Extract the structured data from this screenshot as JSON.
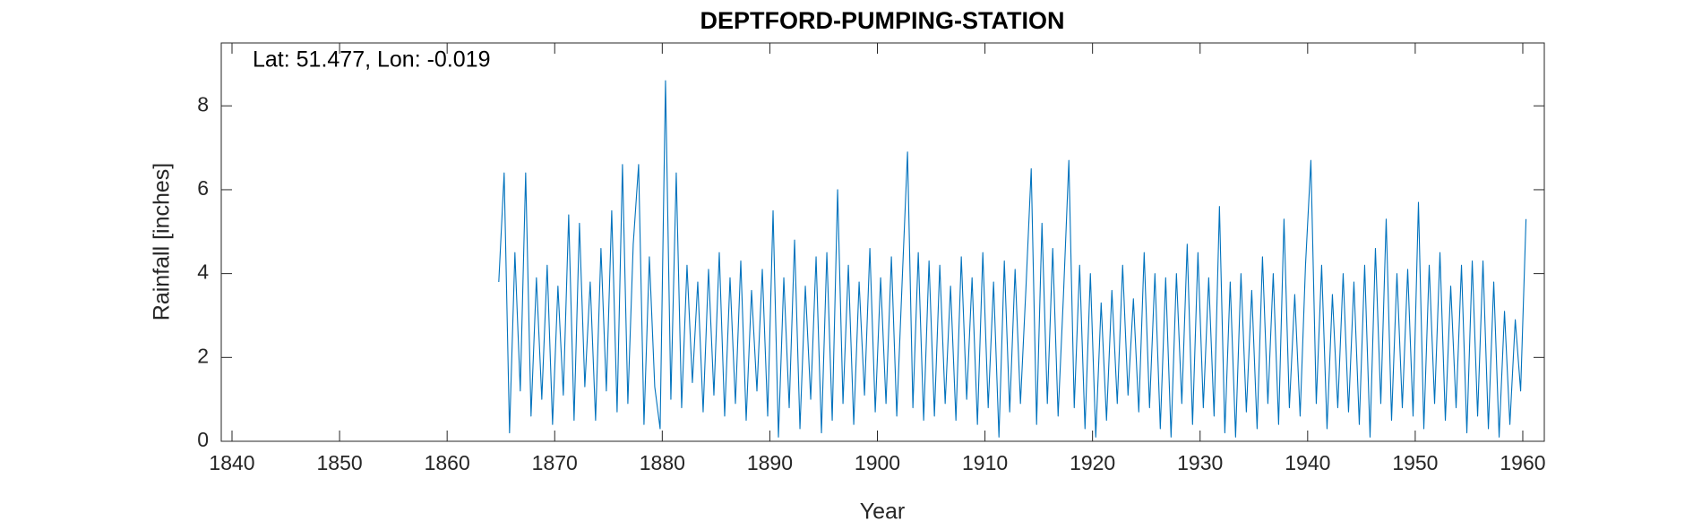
{
  "chart_data": {
    "type": "line",
    "title": "DEPTFORD-PUMPING-STATION",
    "annotation": "Lat: 51.477, Lon: -0.019",
    "xlabel": "Year",
    "ylabel": "Rainfall [inches]",
    "xlim": [
      1839,
      1962
    ],
    "xticks": [
      1840,
      1850,
      1860,
      1870,
      1880,
      1890,
      1900,
      1910,
      1920,
      1930,
      1940,
      1950,
      1960
    ],
    "ylim": [
      0,
      9.5
    ],
    "yticks": [
      0,
      2,
      4,
      6,
      8
    ],
    "x": [
      1864.8,
      1865.3,
      1865.8,
      1866.3,
      1866.8,
      1867.3,
      1867.8,
      1868.3,
      1868.8,
      1869.3,
      1869.8,
      1870.3,
      1870.8,
      1871.3,
      1871.8,
      1872.3,
      1872.8,
      1873.3,
      1873.8,
      1874.3,
      1874.8,
      1875.3,
      1875.8,
      1876.3,
      1876.8,
      1877.3,
      1877.8,
      1878.3,
      1878.8,
      1879.3,
      1879.8,
      1880.3,
      1880.8,
      1881.3,
      1881.8,
      1882.3,
      1882.8,
      1883.3,
      1883.8,
      1884.3,
      1884.8,
      1885.3,
      1885.8,
      1886.3,
      1886.8,
      1887.3,
      1887.8,
      1888.3,
      1888.8,
      1889.3,
      1889.8,
      1890.3,
      1890.8,
      1891.3,
      1891.8,
      1892.3,
      1892.8,
      1893.3,
      1893.8,
      1894.3,
      1894.8,
      1895.3,
      1895.8,
      1896.3,
      1896.8,
      1897.3,
      1897.8,
      1898.3,
      1898.8,
      1899.3,
      1899.8,
      1900.3,
      1900.8,
      1901.3,
      1901.8,
      1902.3,
      1902.8,
      1903.3,
      1903.8,
      1904.3,
      1904.8,
      1905.3,
      1905.8,
      1906.3,
      1906.8,
      1907.3,
      1907.8,
      1908.3,
      1908.8,
      1909.3,
      1909.8,
      1910.3,
      1910.8,
      1911.3,
      1911.8,
      1912.3,
      1912.8,
      1913.3,
      1913.8,
      1914.3,
      1914.8,
      1915.3,
      1915.8,
      1916.3,
      1916.8,
      1917.3,
      1917.8,
      1918.3,
      1918.8,
      1919.3,
      1919.8,
      1920.3,
      1920.8,
      1921.3,
      1921.8,
      1922.3,
      1922.8,
      1923.3,
      1923.8,
      1924.3,
      1924.8,
      1925.3,
      1925.8,
      1926.3,
      1926.8,
      1927.3,
      1927.8,
      1928.3,
      1928.8,
      1929.3,
      1929.8,
      1930.3,
      1930.8,
      1931.3,
      1931.8,
      1932.3,
      1932.8,
      1933.3,
      1933.8,
      1934.3,
      1934.8,
      1935.3,
      1935.8,
      1936.3,
      1936.8,
      1937.3,
      1937.8,
      1938.3,
      1938.8,
      1939.3,
      1939.8,
      1940.3,
      1940.8,
      1941.3,
      1941.8,
      1942.3,
      1942.8,
      1943.3,
      1943.8,
      1944.3,
      1944.8,
      1945.3,
      1945.8,
      1946.3,
      1946.8,
      1947.3,
      1947.8,
      1948.3,
      1948.8,
      1949.3,
      1949.8,
      1950.3,
      1950.8,
      1951.3,
      1951.8,
      1952.3,
      1952.8,
      1953.3,
      1953.8,
      1954.3,
      1954.8,
      1955.3,
      1955.8,
      1956.3,
      1956.8,
      1957.3,
      1957.8,
      1958.3,
      1958.8,
      1959.3,
      1959.8,
      1960.3
    ],
    "series": [
      {
        "color": "#0072bd",
        "values": [
          3.8,
          6.4,
          0.2,
          4.5,
          1.2,
          6.4,
          0.6,
          3.9,
          1.0,
          4.2,
          0.4,
          3.7,
          1.1,
          5.4,
          0.5,
          5.2,
          1.3,
          3.8,
          0.5,
          4.6,
          1.2,
          5.5,
          0.7,
          6.6,
          0.9,
          4.7,
          6.6,
          0.4,
          4.4,
          1.3,
          0.3,
          8.6,
          1.0,
          6.4,
          0.8,
          4.2,
          1.4,
          3.8,
          0.7,
          4.1,
          1.1,
          4.5,
          0.6,
          3.9,
          0.9,
          4.3,
          0.5,
          3.6,
          1.2,
          4.1,
          0.6,
          5.5,
          0.1,
          3.9,
          0.8,
          4.8,
          0.3,
          3.7,
          1.0,
          4.4,
          0.2,
          4.5,
          0.5,
          6.0,
          0.9,
          4.2,
          0.4,
          3.8,
          1.1,
          4.6,
          0.7,
          3.9,
          0.9,
          4.4,
          0.6,
          3.8,
          6.9,
          0.8,
          4.5,
          0.5,
          4.3,
          0.6,
          4.2,
          0.9,
          3.7,
          0.5,
          4.4,
          1.0,
          3.9,
          0.4,
          4.5,
          0.8,
          3.8,
          0.1,
          4.3,
          0.7,
          4.1,
          0.9,
          3.6,
          6.5,
          0.4,
          5.2,
          0.9,
          4.6,
          0.6,
          3.5,
          6.7,
          0.8,
          4.2,
          0.3,
          4.0,
          0.1,
          3.3,
          0.5,
          3.6,
          0.9,
          4.2,
          1.1,
          3.4,
          0.7,
          4.5,
          0.8,
          4.0,
          0.3,
          3.9,
          0.1,
          4.0,
          0.9,
          4.7,
          0.4,
          4.5,
          0.8,
          3.9,
          0.6,
          5.6,
          0.2,
          3.8,
          0.1,
          4.0,
          0.7,
          3.6,
          0.3,
          4.4,
          0.9,
          4.0,
          0.4,
          5.3,
          0.8,
          3.5,
          0.6,
          4.2,
          6.7,
          0.9,
          4.2,
          0.3,
          3.5,
          0.8,
          4.0,
          0.7,
          3.8,
          0.4,
          4.2,
          0.1,
          4.6,
          0.9,
          5.3,
          0.5,
          4.0,
          0.8,
          4.1,
          0.6,
          5.7,
          0.3,
          4.2,
          0.9,
          4.5,
          0.5,
          3.7,
          0.8,
          4.2,
          0.2,
          4.3,
          0.6,
          4.3,
          0.3,
          3.8,
          0.1,
          3.1,
          0.4,
          2.9,
          1.2,
          5.3
        ]
      }
    ]
  }
}
